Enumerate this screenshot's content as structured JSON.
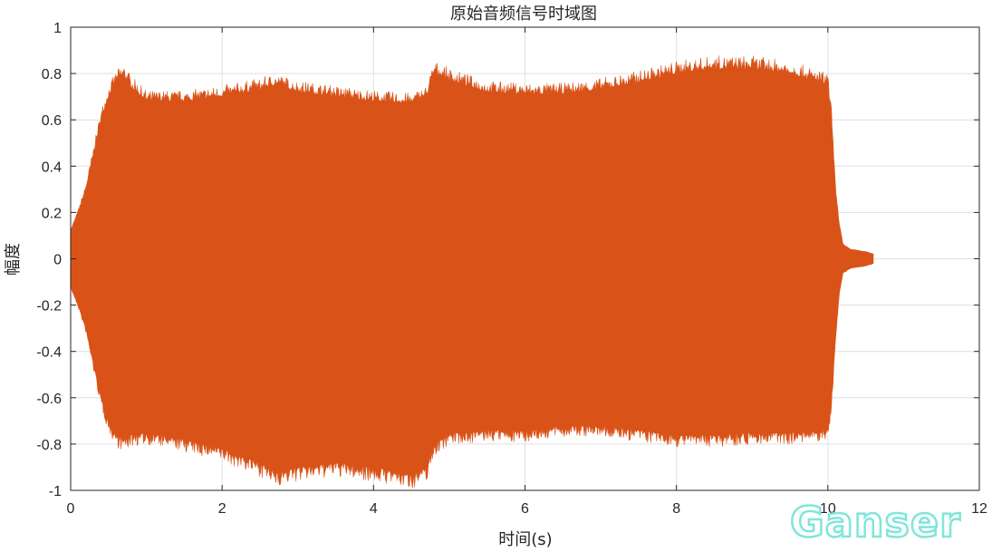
{
  "chart_data": {
    "type": "line",
    "title": "原始音频信号时域图",
    "xlabel": "时间(s)",
    "ylabel": "幅度",
    "xlim": [
      0,
      12
    ],
    "ylim": [
      -1,
      1
    ],
    "xticks": [
      0,
      2,
      4,
      6,
      8,
      10,
      12
    ],
    "yticks": [
      -1,
      -0.8,
      -0.6,
      -0.4,
      -0.2,
      0,
      0.2,
      0.4,
      0.6,
      0.8,
      1
    ],
    "grid": true,
    "series": [
      {
        "color": "#d95319",
        "envelope_time": [
          0,
          0.1,
          0.2,
          0.3,
          0.4,
          0.5,
          0.6,
          0.7,
          0.8,
          1.0,
          1.5,
          2.0,
          2.5,
          2.7,
          3.0,
          3.5,
          4.0,
          4.5,
          4.7,
          4.8,
          5.0,
          5.5,
          6.0,
          6.5,
          7.0,
          7.5,
          8.0,
          8.5,
          9.0,
          9.5,
          10.0,
          10.05,
          10.1,
          10.15,
          10.2,
          10.3,
          10.5,
          10.6
        ],
        "envelope_upper": [
          0.12,
          0.2,
          0.3,
          0.45,
          0.6,
          0.7,
          0.76,
          0.79,
          0.74,
          0.68,
          0.68,
          0.7,
          0.73,
          0.75,
          0.72,
          0.7,
          0.68,
          0.67,
          0.7,
          0.8,
          0.77,
          0.72,
          0.71,
          0.71,
          0.73,
          0.76,
          0.8,
          0.82,
          0.82,
          0.8,
          0.75,
          0.6,
          0.3,
          0.15,
          0.06,
          0.04,
          0.03,
          0.02
        ],
        "envelope_lower": [
          -0.12,
          -0.2,
          -0.3,
          -0.45,
          -0.6,
          -0.7,
          -0.76,
          -0.78,
          -0.76,
          -0.75,
          -0.78,
          -0.82,
          -0.88,
          -0.92,
          -0.9,
          -0.88,
          -0.9,
          -0.93,
          -0.9,
          -0.8,
          -0.75,
          -0.74,
          -0.74,
          -0.72,
          -0.72,
          -0.74,
          -0.76,
          -0.76,
          -0.75,
          -0.75,
          -0.74,
          -0.6,
          -0.35,
          -0.15,
          -0.06,
          -0.04,
          -0.03,
          -0.02
        ]
      }
    ]
  },
  "watermark": "Ganser"
}
